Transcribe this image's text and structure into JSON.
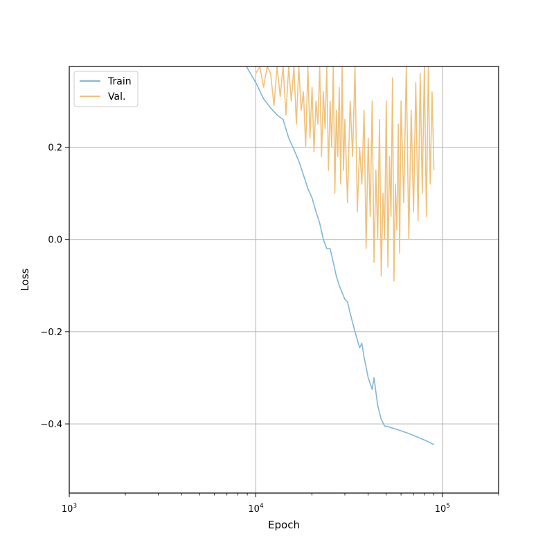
{
  "chart_data": {
    "type": "line",
    "xscale": "log",
    "xlabel": "Epoch",
    "ylabel": "Loss",
    "xlim": [
      1000,
      200000
    ],
    "ylim": [
      -0.55,
      0.375
    ],
    "grid": true,
    "legend_position": "top-left",
    "x_ticks": [
      {
        "value": 1000,
        "base": "10",
        "exp": "3"
      },
      {
        "value": 10000,
        "base": "10",
        "exp": "4"
      },
      {
        "value": 100000,
        "base": "10",
        "exp": "5"
      }
    ],
    "y_ticks": [
      {
        "value": -0.4,
        "label": "−0.4"
      },
      {
        "value": -0.2,
        "label": "−0.2"
      },
      {
        "value": 0.0,
        "label": "0.0"
      },
      {
        "value": 0.2,
        "label": "0.2"
      }
    ],
    "series": [
      {
        "name": "Train",
        "color": "#7fb7d9",
        "x": [
          8900,
          10000,
          11000,
          12000,
          13000,
          14000,
          15000,
          16000,
          17000,
          18000,
          19000,
          20000,
          21000,
          22000,
          23000,
          24000,
          25000,
          26000,
          27000,
          28000,
          30000,
          31000,
          32000,
          34000,
          36000,
          37000,
          38000,
          40000,
          42000,
          43000,
          45000,
          47000,
          49000,
          50000,
          55000,
          60000,
          65000,
          70000,
          75000,
          80000,
          85000,
          90000
        ],
        "y": [
          0.375,
          0.34,
          0.305,
          0.285,
          0.27,
          0.26,
          0.22,
          0.195,
          0.17,
          0.14,
          0.11,
          0.09,
          0.06,
          0.035,
          0.0,
          -0.02,
          -0.02,
          -0.05,
          -0.08,
          -0.1,
          -0.13,
          -0.135,
          -0.16,
          -0.2,
          -0.235,
          -0.225,
          -0.255,
          -0.3,
          -0.325,
          -0.3,
          -0.36,
          -0.39,
          -0.405,
          -0.405,
          -0.41,
          -0.415,
          -0.42,
          -0.425,
          -0.43,
          -0.435,
          -0.44,
          -0.445
        ]
      },
      {
        "name": "Val.",
        "color": "#f0c27a",
        "x": [
          10000,
          10500,
          11000,
          11500,
          12000,
          12500,
          13000,
          13500,
          14000,
          14500,
          15000,
          15500,
          16000,
          16500,
          17000,
          17500,
          18000,
          18500,
          19000,
          19500,
          20000,
          20500,
          21000,
          21500,
          22000,
          22500,
          23000,
          23500,
          24000,
          24500,
          25000,
          25500,
          26000,
          26500,
          27000,
          27500,
          28000,
          28500,
          29000,
          29500,
          30000,
          31000,
          32000,
          33000,
          34000,
          35000,
          36000,
          37000,
          38000,
          39000,
          40000,
          41000,
          42000,
          43000,
          44000,
          45000,
          46000,
          47000,
          48000,
          49000,
          50000,
          51000,
          52000,
          53000,
          54000,
          55000,
          56000,
          57000,
          58000,
          59000,
          60000,
          62000,
          64000,
          66000,
          68000,
          70000,
          72000,
          74000,
          76000,
          78000,
          80000,
          82000,
          84000,
          86000,
          88000,
          90000
        ],
        "y": [
          0.36,
          0.375,
          0.33,
          0.375,
          0.36,
          0.29,
          0.375,
          0.31,
          0.375,
          0.27,
          0.375,
          0.3,
          0.375,
          0.25,
          0.375,
          0.28,
          0.32,
          0.2,
          0.375,
          0.22,
          0.33,
          0.19,
          0.3,
          0.25,
          0.375,
          0.18,
          0.32,
          0.24,
          0.375,
          0.15,
          0.3,
          0.2,
          0.375,
          0.1,
          0.28,
          0.18,
          0.33,
          0.12,
          0.375,
          0.15,
          0.26,
          0.08,
          0.3,
          0.18,
          0.375,
          0.06,
          0.2,
          0.12,
          0.28,
          -0.02,
          0.22,
          0.05,
          0.3,
          -0.05,
          0.15,
          0.0,
          0.26,
          -0.08,
          0.1,
          0.0,
          0.3,
          -0.06,
          0.18,
          0.05,
          0.35,
          -0.09,
          0.12,
          0.02,
          0.25,
          -0.03,
          0.3,
          0.08,
          0.375,
          0.0,
          0.28,
          0.06,
          0.34,
          0.04,
          0.36,
          0.1,
          0.375,
          0.05,
          0.375,
          0.12,
          0.32,
          0.15
        ]
      }
    ]
  }
}
